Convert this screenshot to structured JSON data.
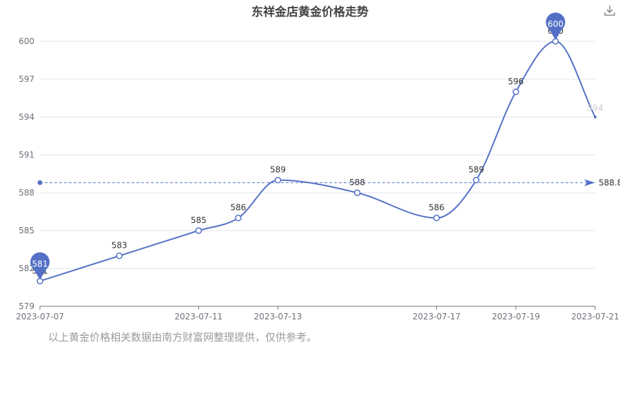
{
  "chart_data": {
    "type": "line",
    "title": "东祥金店黄金价格走势",
    "x": [
      "2023-07-07",
      "2023-07-09",
      "2023-07-11",
      "2023-07-12",
      "2023-07-13",
      "2023-07-15",
      "2023-07-17",
      "2023-07-18",
      "2023-07-19",
      "2023-07-20",
      "2023-07-21"
    ],
    "values": [
      581,
      583,
      585,
      586,
      589,
      588,
      586,
      589,
      596,
      600,
      594
    ],
    "x_ticks": [
      "2023-07-07",
      "2023-07-11",
      "2023-07-13",
      "2023-07-17",
      "2023-07-19",
      "2023-07-21"
    ],
    "ylim": [
      579,
      600
    ],
    "y_ticks": [
      579,
      582,
      585,
      588,
      591,
      594,
      597,
      600
    ],
    "y_tick_labels": [
      "579",
      "582",
      "585",
      "588",
      "591",
      "594",
      "597",
      "600"
    ],
    "data_labels": [
      "581",
      "583",
      "585",
      "586",
      "589",
      "588",
      "586",
      "589",
      "596",
      "600",
      "594"
    ],
    "max_marker": {
      "label": "600",
      "value": 600
    },
    "min_marker": {
      "label": "581",
      "value": 581
    },
    "average": {
      "value": 588.8,
      "label": "588.8"
    },
    "grid": true,
    "color": "#5470c6"
  },
  "footnote": "以上黄金价格相关数据由南方财富网整理提供，仅供参考。",
  "toolbar": {
    "download_icon": "download-icon"
  }
}
